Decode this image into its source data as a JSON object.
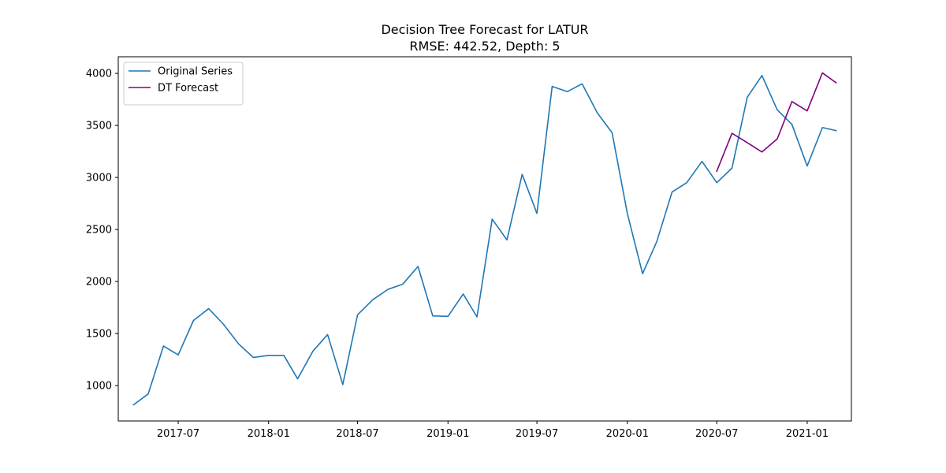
{
  "chart_data": {
    "type": "line",
    "title": "Decision Tree Forecast for LATUR",
    "subtitle": "RMSE: 442.52, Depth: 5",
    "xlabel": "",
    "ylabel": "",
    "xlim": [
      "2017-03-01",
      "2021-04-01"
    ],
    "ylim": [
      660,
      4160
    ],
    "x_ticks": [
      "2017-07-01",
      "2018-01-01",
      "2018-07-01",
      "2019-01-01",
      "2019-07-01",
      "2020-01-01",
      "2020-07-01",
      "2021-01-01"
    ],
    "x_tick_labels": [
      "2017-07",
      "2018-01",
      "2018-07",
      "2019-01",
      "2019-07",
      "2020-01",
      "2020-07",
      "2021-01"
    ],
    "y_ticks": [
      1000,
      1500,
      2000,
      2500,
      3000,
      3500,
      4000
    ],
    "y_tick_labels": [
      "1000",
      "1500",
      "2000",
      "2500",
      "3000",
      "3500",
      "4000"
    ],
    "grid": false,
    "legend": {
      "position": "top-left"
    },
    "series": [
      {
        "name": "Original Series",
        "color": "#1f77b4",
        "x": [
          "2017-04-01",
          "2017-05-01",
          "2017-06-01",
          "2017-07-01",
          "2017-08-01",
          "2017-09-01",
          "2017-10-01",
          "2017-11-01",
          "2017-12-01",
          "2018-01-01",
          "2018-02-01",
          "2018-03-01",
          "2018-04-01",
          "2018-05-01",
          "2018-06-01",
          "2018-07-01",
          "2018-08-01",
          "2018-09-01",
          "2018-10-01",
          "2018-11-01",
          "2018-12-01",
          "2019-01-01",
          "2019-02-01",
          "2019-03-01",
          "2019-04-01",
          "2019-05-01",
          "2019-06-01",
          "2019-07-01",
          "2019-08-01",
          "2019-09-01",
          "2019-10-01",
          "2019-11-01",
          "2019-12-01",
          "2020-01-01",
          "2020-02-01",
          "2020-03-01",
          "2020-04-01",
          "2020-05-01",
          "2020-06-01",
          "2020-07-01",
          "2020-08-01",
          "2020-09-01",
          "2020-10-01",
          "2020-11-01",
          "2020-12-01",
          "2021-01-01",
          "2021-02-01",
          "2021-03-01"
        ],
        "values": [
          815,
          920,
          1380,
          1295,
          1625,
          1740,
          1590,
          1400,
          1270,
          1290,
          1290,
          1065,
          1330,
          1490,
          1010,
          1680,
          1825,
          1925,
          1975,
          2145,
          1670,
          1665,
          1880,
          1660,
          2600,
          2400,
          3030,
          2655,
          3875,
          3825,
          3900,
          3620,
          3430,
          2655,
          2075,
          2385,
          2860,
          2950,
          3155,
          2950,
          3090,
          3770,
          3980,
          3650,
          3510,
          3110,
          3480,
          3450
        ]
      },
      {
        "name": "DT Forecast",
        "color": "#800080",
        "x": [
          "2020-07-01",
          "2020-08-01",
          "2020-09-01",
          "2020-10-01",
          "2020-11-01",
          "2020-12-01",
          "2021-01-01",
          "2021-02-01",
          "2021-03-01"
        ],
        "values": [
          3060,
          3425,
          3335,
          3245,
          3370,
          3730,
          3640,
          4005,
          3910
        ]
      }
    ]
  }
}
